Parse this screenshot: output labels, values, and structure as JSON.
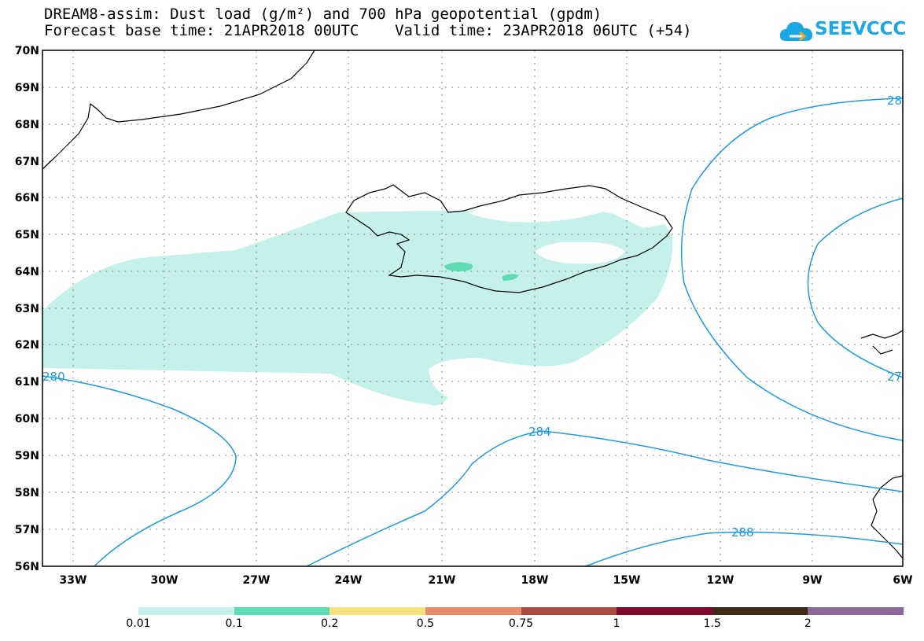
{
  "header": {
    "line1": "DREAM8-assim: Dust load (g/m²) and 700 hPa geopotential (gpdm)",
    "line2": "Forecast base time: 21APR2018 00UTC    Valid time: 23APR2018 06UTC (+54)"
  },
  "logo": {
    "text": "SEEVCCC",
    "icon": "cloud-icon",
    "color": "#1aa7e6"
  },
  "axes": {
    "lat_labels": [
      "70N",
      "69N",
      "68N",
      "67N",
      "66N",
      "65N",
      "64N",
      "63N",
      "62N",
      "61N",
      "60N",
      "59N",
      "58N",
      "57N",
      "56N"
    ],
    "lon_labels": [
      "33W",
      "30W",
      "27W",
      "24W",
      "21W",
      "18W",
      "15W",
      "12W",
      "9W",
      "6W"
    ]
  },
  "contour_labels": [
    "28",
    "280",
    "284",
    "288",
    "27"
  ],
  "colorbar": {
    "colors": [
      "#c6f1ea",
      "#5ddcb4",
      "#f6e27e",
      "#e48c6b",
      "#a44d40",
      "#7e0a2e",
      "#3e2816",
      "#8b6a9a"
    ],
    "labels": [
      "0.01",
      "0.1",
      "0.2",
      "0.5",
      "0.75",
      "1",
      "1.5",
      "2"
    ]
  }
}
